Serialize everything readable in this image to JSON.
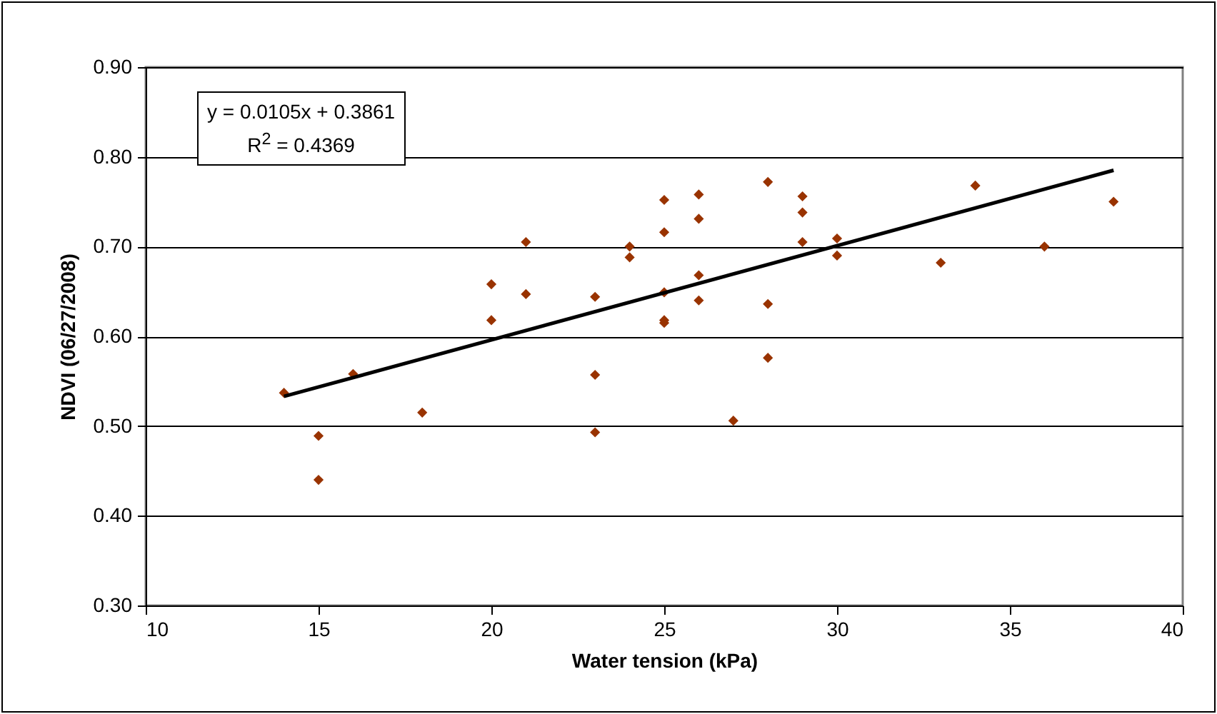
{
  "chart_data": {
    "type": "scatter",
    "xlabel": "Water tension (kPa)",
    "ylabel": "NDVI (06/27/2008)",
    "annotations": [
      "y = 0.0105x + 0.3861",
      "R$^{2}$ = 0.4369"
    ],
    "xlim": [
      10,
      40
    ],
    "xticks": [
      10,
      15,
      20,
      25,
      30,
      35,
      40
    ],
    "ylim": [
      0.3,
      0.9
    ],
    "yticks": [
      {
        "value": 0.3,
        "label": "0.30"
      },
      {
        "value": 0.4,
        "label": "0.40"
      },
      {
        "value": 0.5,
        "label": "0.50"
      },
      {
        "value": 0.6,
        "label": "0.60"
      },
      {
        "value": 0.7,
        "label": "0.70"
      },
      {
        "value": 0.8,
        "label": "0.80"
      },
      {
        "value": 0.9,
        "label": "0.90"
      }
    ],
    "grid": "y",
    "marker": "diamond",
    "series": [
      {
        "color": "#993300",
        "x": [
          14,
          15,
          15,
          16,
          18,
          20,
          20,
          21,
          21,
          23,
          23,
          23,
          24,
          24,
          25,
          25,
          25,
          25,
          25,
          26,
          26,
          26,
          26,
          27,
          28,
          28,
          28,
          29,
          29,
          29,
          30,
          30,
          33,
          34,
          36,
          38
        ],
        "values": [
          0.537,
          0.489,
          0.44,
          0.558,
          0.515,
          0.658,
          0.618,
          0.705,
          0.647,
          0.644,
          0.557,
          0.493,
          0.7,
          0.688,
          0.752,
          0.716,
          0.649,
          0.618,
          0.615,
          0.758,
          0.731,
          0.668,
          0.64,
          0.506,
          0.772,
          0.636,
          0.576,
          0.756,
          0.738,
          0.705,
          0.709,
          0.69,
          0.682,
          0.768,
          0.7,
          0.75
        ]
      },
      {
        "type": "line",
        "color": "#000000",
        "x": [
          14,
          38
        ],
        "values": [
          0.533,
          0.785
        ],
        "line_style": "solid",
        "marker": "none"
      }
    ]
  }
}
